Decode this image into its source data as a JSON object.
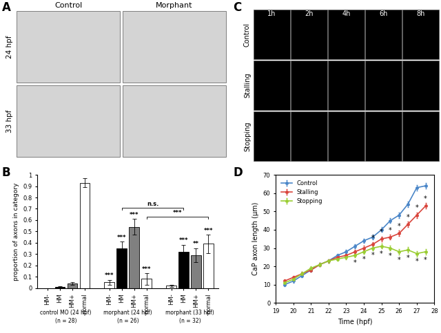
{
  "panel_labels": [
    "A",
    "B",
    "C",
    "D"
  ],
  "panel_A": {
    "type": "image grid",
    "columns": [
      "Control",
      "Morphant"
    ],
    "rows": [
      "24 hpf",
      "33 hpf"
    ]
  },
  "panel_C": {
    "type": "image grid",
    "columns": [
      "1h",
      "2h",
      "4h",
      "6h",
      "8h"
    ],
    "rows": [
      "Control",
      "Stalling",
      "Stopping"
    ]
  },
  "chart_data": [
    {
      "type": "bar",
      "y_label": "proportion of axons in category",
      "categories": [
        "HM-",
        "HM",
        "HM+",
        "normal"
      ],
      "colors": [
        "#ffffff",
        "#000000",
        "#808080",
        "#ffffff"
      ],
      "groups": [
        {
          "name": "control MO (24 hpf)",
          "n_label": "(n = 28)",
          "values": [
            0.0,
            0.01,
            0.04,
            0.93
          ],
          "errors": [
            0.0,
            0.005,
            0.01,
            0.04
          ],
          "significance": [
            null,
            null,
            null,
            null
          ]
        },
        {
          "name": "morphant (24 hpf)",
          "n_label": "(n = 26)",
          "values": [
            0.05,
            0.35,
            0.54,
            0.08
          ],
          "errors": [
            0.02,
            0.06,
            0.07,
            0.05
          ],
          "significance": [
            "***",
            "***",
            "***",
            "***"
          ]
        },
        {
          "name": "morphant (33 hpf)",
          "n_label": "(n = 32)",
          "values": [
            0.02,
            0.32,
            0.29,
            0.39
          ],
          "errors": [
            0.01,
            0.06,
            0.06,
            0.08
          ],
          "significance": [
            null,
            "***",
            "**",
            "***"
          ]
        }
      ],
      "comparisons": [
        {
          "from": [
            1,
            1
          ],
          "to": [
            2,
            1
          ],
          "label": "n.s."
        },
        {
          "from": [
            1,
            3
          ],
          "to": [
            2,
            3
          ],
          "label": "***"
        }
      ],
      "ylim": [
        0,
        1
      ],
      "yticks": [
        0,
        0.1,
        0.2,
        0.3,
        0.4,
        0.5,
        0.6,
        0.7,
        0.8,
        0.9,
        1
      ],
      "grid": false
    },
    {
      "type": "line",
      "x_label": "Time (hpf)",
      "y_label": "CaP axon length (µm)",
      "x": [
        19.5,
        20,
        20.5,
        21,
        21.5,
        22,
        22.5,
        23,
        23.5,
        24,
        24.5,
        25,
        25.5,
        26,
        26.5,
        27,
        27.5
      ],
      "series": [
        {
          "name": "Control",
          "color": "#4a86c8",
          "values": [
            10,
            12,
            15,
            18,
            21,
            23,
            26,
            28,
            31,
            34,
            36,
            40,
            45,
            48,
            54,
            63,
            64
          ],
          "errors": [
            1,
            1,
            1,
            1,
            1,
            1,
            1,
            1,
            1.2,
            1.2,
            1.2,
            1.3,
            1.3,
            1.5,
            1.5,
            1.5,
            1.5
          ],
          "significance": [
            null,
            null,
            null,
            null,
            null,
            null,
            null,
            null,
            null,
            null,
            null,
            null,
            null,
            null,
            null,
            null,
            null
          ]
        },
        {
          "name": "Stalling",
          "color": "#d9453c",
          "values": [
            12,
            14,
            16,
            18,
            21,
            23,
            25,
            26,
            28,
            30,
            32,
            35,
            36,
            38,
            43,
            48,
            53
          ],
          "errors": [
            1,
            1,
            1,
            1,
            1,
            1,
            1,
            1,
            1.2,
            1.2,
            1.2,
            1.3,
            1.3,
            1.5,
            1.5,
            1.5,
            1.5
          ],
          "significance": [
            null,
            null,
            null,
            null,
            null,
            null,
            null,
            null,
            null,
            null,
            "*",
            "*",
            "*",
            "*",
            "*",
            "*",
            "*"
          ]
        },
        {
          "name": "Stopping",
          "color": "#9acd32",
          "values": [
            11,
            13,
            16,
            19,
            21,
            23,
            24,
            25,
            26,
            28,
            30,
            31,
            30,
            28,
            29,
            27,
            28
          ],
          "errors": [
            1,
            1,
            1,
            1,
            1,
            1,
            1,
            1,
            1.2,
            1.2,
            1.2,
            1.3,
            1.3,
            1.5,
            1.5,
            1.5,
            1.5
          ],
          "significance": [
            null,
            null,
            null,
            null,
            null,
            null,
            null,
            null,
            "*",
            "*",
            "*",
            "*",
            "*",
            "*",
            "*",
            "*",
            "*"
          ]
        }
      ],
      "xlim": [
        19,
        28
      ],
      "xticks": [
        19,
        20,
        21,
        22,
        23,
        24,
        25,
        26,
        27,
        28
      ],
      "ylim": [
        0,
        70
      ],
      "yticks": [
        0,
        10,
        20,
        30,
        40,
        50,
        60,
        70
      ],
      "legend": "upper left",
      "marker": "o",
      "grid": false
    }
  ]
}
